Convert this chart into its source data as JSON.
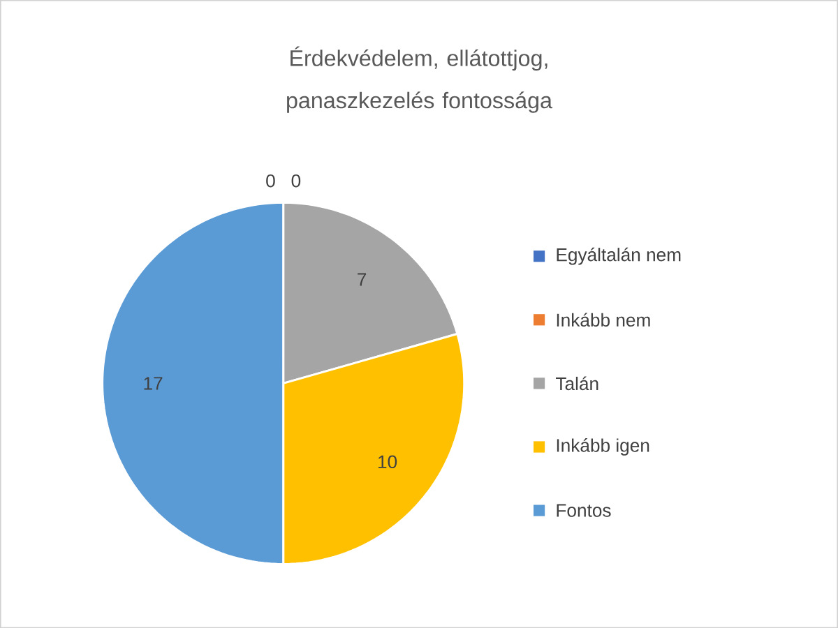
{
  "chart_data": {
    "type": "pie",
    "title": "Érdekvédelem, ellátottjog, panaszkezelés fontossága",
    "categories": [
      "Egyáltalán nem",
      "Inkább nem",
      "Talán",
      "Inkább igen",
      "Fontos"
    ],
    "values": [
      0,
      0,
      7,
      10,
      17
    ],
    "colors": [
      "#4472c4",
      "#ed7d31",
      "#a5a5a5",
      "#ffc000",
      "#5b9bd5"
    ],
    "value_labels": [
      "0",
      "0",
      "7",
      "10",
      "17"
    ],
    "legend": "right"
  }
}
